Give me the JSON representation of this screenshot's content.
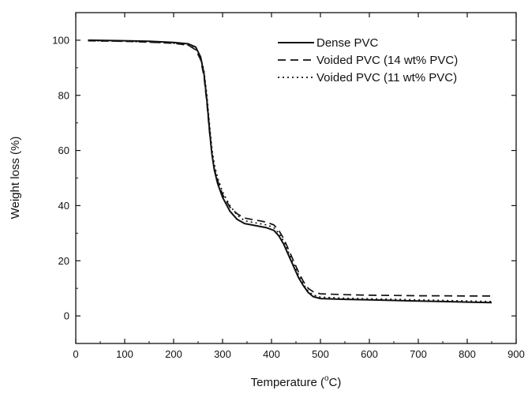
{
  "chart_data": {
    "type": "line",
    "xlabel_main": "Temperature (",
    "xlabel_sup": "o",
    "xlabel_tail": "C)",
    "ylabel": "Weight loss (%)",
    "xlim": [
      0,
      900
    ],
    "ylim": [
      -10,
      110
    ],
    "xticks": [
      0,
      100,
      200,
      300,
      400,
      500,
      600,
      700,
      800,
      900
    ],
    "yticks": [
      0,
      20,
      40,
      60,
      80,
      100
    ],
    "grid": false,
    "legend_position": "top-right",
    "series": [
      {
        "name": "Dense PVC",
        "style": "solid",
        "points": [
          [
            25,
            100
          ],
          [
            100,
            99.8
          ],
          [
            150,
            99.6
          ],
          [
            200,
            99.2
          ],
          [
            230,
            98.7
          ],
          [
            245,
            97.5
          ],
          [
            255,
            94
          ],
          [
            262,
            88
          ],
          [
            268,
            78
          ],
          [
            273,
            68
          ],
          [
            278,
            59
          ],
          [
            283,
            53
          ],
          [
            290,
            48
          ],
          [
            300,
            43
          ],
          [
            315,
            38
          ],
          [
            330,
            35
          ],
          [
            345,
            33.5
          ],
          [
            360,
            33
          ],
          [
            375,
            32.5
          ],
          [
            390,
            32
          ],
          [
            405,
            31
          ],
          [
            415,
            29
          ],
          [
            425,
            26
          ],
          [
            435,
            22
          ],
          [
            445,
            18
          ],
          [
            455,
            14
          ],
          [
            465,
            11
          ],
          [
            475,
            8.5
          ],
          [
            485,
            7
          ],
          [
            500,
            6.3
          ],
          [
            550,
            6
          ],
          [
            600,
            5.8
          ],
          [
            650,
            5.6
          ],
          [
            700,
            5.4
          ],
          [
            750,
            5.2
          ],
          [
            800,
            5
          ],
          [
            850,
            4.8
          ]
        ]
      },
      {
        "name": "Voided PVC (14 wt% PVC)",
        "style": "dashed",
        "points": [
          [
            25,
            99.8
          ],
          [
            100,
            99.6
          ],
          [
            150,
            99.3
          ],
          [
            200,
            98.9
          ],
          [
            230,
            98.2
          ],
          [
            245,
            96.5
          ],
          [
            255,
            93
          ],
          [
            262,
            87
          ],
          [
            268,
            77
          ],
          [
            273,
            67
          ],
          [
            278,
            59
          ],
          [
            283,
            53.5
          ],
          [
            290,
            49
          ],
          [
            300,
            44
          ],
          [
            315,
            39.5
          ],
          [
            330,
            37
          ],
          [
            345,
            35.5
          ],
          [
            360,
            35
          ],
          [
            375,
            34.5
          ],
          [
            390,
            34
          ],
          [
            405,
            33
          ],
          [
            415,
            31
          ],
          [
            425,
            28
          ],
          [
            435,
            24
          ],
          [
            445,
            20
          ],
          [
            455,
            16
          ],
          [
            465,
            12.5
          ],
          [
            475,
            10
          ],
          [
            485,
            8.8
          ],
          [
            500,
            8
          ],
          [
            550,
            7.7
          ],
          [
            600,
            7.5
          ],
          [
            650,
            7.4
          ],
          [
            700,
            7.3
          ],
          [
            750,
            7.3
          ],
          [
            800,
            7.2
          ],
          [
            850,
            7.2
          ]
        ]
      },
      {
        "name": "Voided PVC (11 wt% PVC)",
        "style": "dotted",
        "points": [
          [
            25,
            99.8
          ],
          [
            100,
            99.6
          ],
          [
            150,
            99.3
          ],
          [
            200,
            98.9
          ],
          [
            230,
            98.2
          ],
          [
            245,
            96.8
          ],
          [
            255,
            94
          ],
          [
            262,
            89
          ],
          [
            268,
            80
          ],
          [
            273,
            70
          ],
          [
            278,
            61
          ],
          [
            283,
            55
          ],
          [
            290,
            50
          ],
          [
            300,
            45
          ],
          [
            315,
            40
          ],
          [
            330,
            36.5
          ],
          [
            345,
            34.5
          ],
          [
            360,
            34
          ],
          [
            375,
            33.5
          ],
          [
            390,
            33
          ],
          [
            405,
            32
          ],
          [
            415,
            30
          ],
          [
            425,
            27
          ],
          [
            435,
            23
          ],
          [
            445,
            19
          ],
          [
            455,
            15
          ],
          [
            465,
            11.5
          ],
          [
            475,
            9
          ],
          [
            485,
            7.6
          ],
          [
            500,
            6.8
          ],
          [
            550,
            6.4
          ],
          [
            600,
            6.2
          ],
          [
            650,
            6
          ],
          [
            700,
            5.8
          ],
          [
            750,
            5.6
          ],
          [
            800,
            5.4
          ],
          [
            850,
            5.2
          ]
        ]
      }
    ]
  }
}
